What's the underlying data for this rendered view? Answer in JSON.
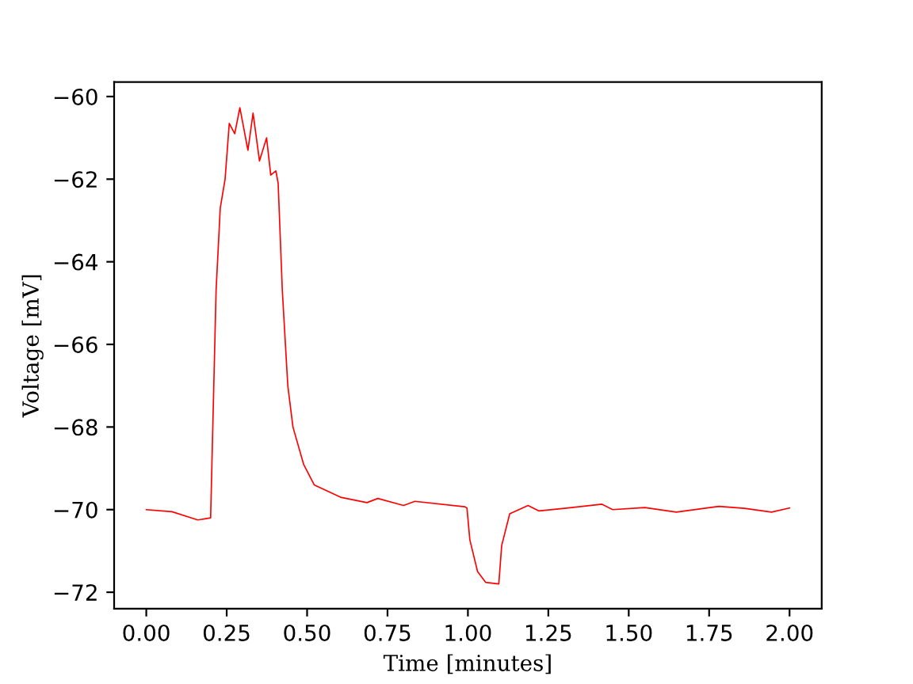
{
  "chart_data": {
    "type": "line",
    "xlabel": "Time [minutes]",
    "ylabel": "Voltage [mV]",
    "x": [
      0,
      0.08,
      0.16,
      0.2,
      0.217,
      0.23,
      0.245,
      0.258,
      0.275,
      0.291,
      0.316,
      0.332,
      0.352,
      0.374,
      0.387,
      0.403,
      0.41,
      0.423,
      0.44,
      0.456,
      0.489,
      0.522,
      0.604,
      0.686,
      0.72,
      0.8,
      0.835,
      0.99,
      0.997,
      1.006,
      1.03,
      1.055,
      1.096,
      1.105,
      1.13,
      1.187,
      1.22,
      1.3,
      1.417,
      1.45,
      1.55,
      1.648,
      1.78,
      1.86,
      1.944,
      2.0
    ],
    "series": [
      {
        "color": "#ff0000",
        "values": [
          -70.0,
          -70.05,
          -70.25,
          -70.2,
          -64.7,
          -62.7,
          -62.0,
          -60.65,
          -60.9,
          -60.27,
          -61.3,
          -60.4,
          -61.56,
          -61.0,
          -61.9,
          -61.8,
          -62.1,
          -64.7,
          -67.0,
          -68.0,
          -68.9,
          -69.4,
          -69.7,
          -69.83,
          -69.73,
          -69.9,
          -69.8,
          -69.93,
          -69.96,
          -70.73,
          -71.5,
          -71.76,
          -71.8,
          -70.87,
          -70.1,
          -69.9,
          -70.03,
          -69.97,
          -69.87,
          -70.0,
          -69.95,
          -70.06,
          -69.92,
          -69.97,
          -70.06,
          -69.96
        ]
      }
    ],
    "xlim": [
      -0.1,
      2.1
    ],
    "ylim": [
      -72.4,
      -59.65
    ],
    "xticks": [
      {
        "value": 0,
        "label": "0.00"
      },
      {
        "value": 0.25,
        "label": "0.25"
      },
      {
        "value": 0.5,
        "label": "0.50"
      },
      {
        "value": 0.75,
        "label": "0.75"
      },
      {
        "value": 1,
        "label": "1.00"
      },
      {
        "value": 1.25,
        "label": "1.25"
      },
      {
        "value": 1.5,
        "label": "1.50"
      },
      {
        "value": 1.75,
        "label": "1.75"
      },
      {
        "value": 2,
        "label": "2.00"
      }
    ],
    "yticks": [
      {
        "value": -72,
        "label": "−72"
      },
      {
        "value": -70,
        "label": "−70"
      },
      {
        "value": -68,
        "label": "−68"
      },
      {
        "value": -66,
        "label": "−66"
      },
      {
        "value": -64,
        "label": "−64"
      },
      {
        "value": -62,
        "label": "−62"
      },
      {
        "value": -60,
        "label": "−60"
      }
    ],
    "grid": false,
    "marker": "none",
    "line_style": "solid"
  }
}
